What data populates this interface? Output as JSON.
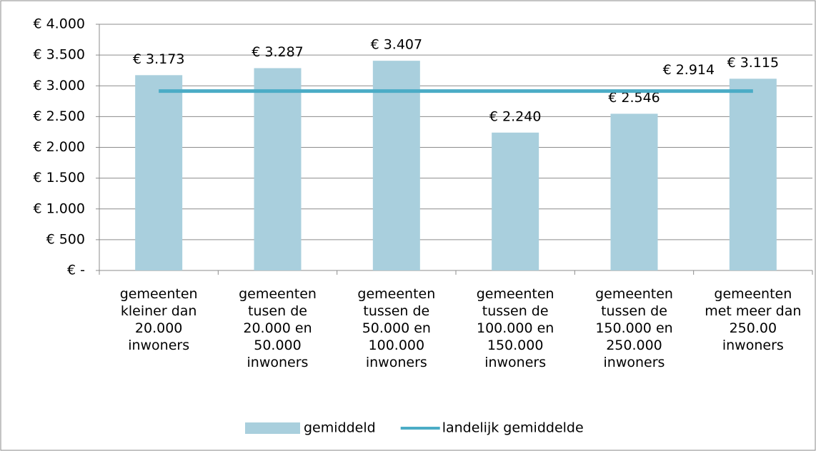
{
  "chart_data": {
    "type": "bar",
    "categories": [
      "gemeenten kleiner dan 20.000 inwoners",
      "gemeenten tusen de 20.000 en 50.000 inwoners",
      "gemeenten tussen de 50.000 en 100.000 inwoners",
      "gemeenten tussen de 100.000 en 150.000 inwoners",
      "gemeenten tussen de 150.000 en 250.000 inwoners",
      "gemeenten met meer dan 250.00 inwoners"
    ],
    "series": [
      {
        "name": "gemiddeld",
        "type": "bar",
        "color": "#a9cfdd",
        "values": [
          3173,
          3287,
          3407,
          2240,
          2546,
          3115
        ],
        "value_labels": [
          "€ 3.173",
          "€ 3.287",
          "€ 3.407",
          "€ 2.240",
          "€ 2.546",
          "€ 3.115"
        ]
      },
      {
        "name": "landelijk gemiddelde",
        "type": "line",
        "color": "#4bacc6",
        "values": [
          2914,
          2914,
          2914,
          2914,
          2914,
          2914
        ],
        "value_labels": [
          null,
          null,
          null,
          null,
          null,
          "€ 2.914"
        ]
      }
    ],
    "ylim": [
      0,
      4000
    ],
    "yticks": [
      {
        "value": 0,
        "label": "€ -"
      },
      {
        "value": 500,
        "label": "€ 500"
      },
      {
        "value": 1000,
        "label": "€ 1.000"
      },
      {
        "value": 1500,
        "label": "€ 1.500"
      },
      {
        "value": 2000,
        "label": "€ 2.000"
      },
      {
        "value": 2500,
        "label": "€ 2.500"
      },
      {
        "value": 3000,
        "label": "€ 3.000"
      },
      {
        "value": 3500,
        "label": "€ 3.500"
      },
      {
        "value": 4000,
        "label": "€ 4.000"
      }
    ],
    "grid": true,
    "legend": "bottom"
  }
}
